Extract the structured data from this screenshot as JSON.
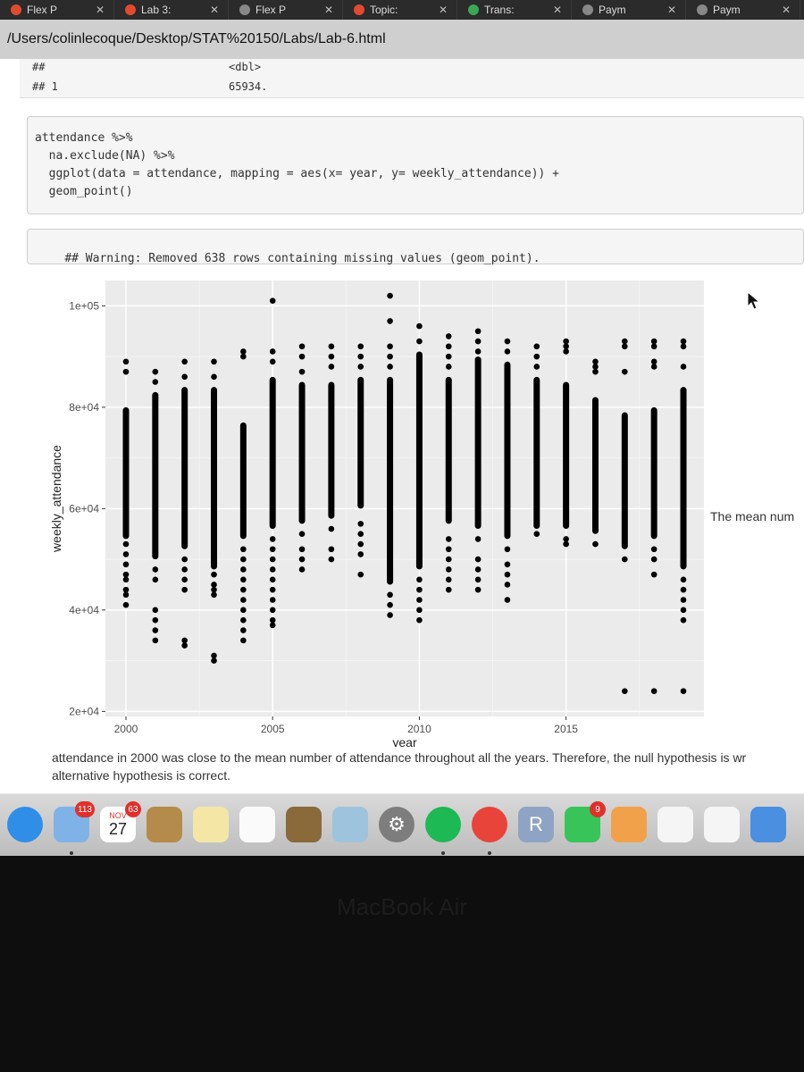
{
  "browser": {
    "tabs": [
      {
        "label": "Flex P",
        "icon_color": "#e24a2f"
      },
      {
        "label": "Lab 3:",
        "icon_color": "#e24a2f"
      },
      {
        "label": "Flex P",
        "icon_color": "#888888"
      },
      {
        "label": "Topic:",
        "icon_color": "#e24a2f"
      },
      {
        "label": "Trans:",
        "icon_color": "#3aa757"
      },
      {
        "label": "Paym",
        "icon_color": "#888888"
      },
      {
        "label": "Paym",
        "icon_color": "#888888"
      }
    ],
    "close_glyph": "✕",
    "url": "/Users/colinlecoque/Desktop/STAT%20150/Labs/Lab-6.html"
  },
  "output_prev": {
    "prefix1": "##",
    "type_label": "<dbl>",
    "prefix2": "## 1",
    "value": "65934."
  },
  "code": {
    "lines": [
      "attendance %>%",
      "  na.exclude(NA) %>%",
      "  ggplot(data = attendance, mapping = aes(x= year, y= weekly_attendance)) +",
      "  geom_point()"
    ]
  },
  "warning": {
    "text": "## Warning: Removed 638 rows containing missing values (geom_point)."
  },
  "chart_data": {
    "type": "scatter",
    "xlabel": "year",
    "ylabel": "weekly_attendance",
    "xlim": [
      1999.3,
      2019.7
    ],
    "ylim": [
      19000,
      105000
    ],
    "xticks": [
      2000,
      2005,
      2010,
      2015
    ],
    "yticks": [
      20000,
      40000,
      60000,
      80000,
      100000
    ],
    "ytick_labels": [
      "2e+04",
      "4e+04",
      "6e+04",
      "8e+04",
      "1e+05"
    ],
    "grid": true,
    "background": "#ebebeb",
    "point_color": "#000000",
    "years": [
      {
        "x": 2000,
        "bar": [
          54000,
          80000
        ],
        "points": [
          89000,
          87000,
          53000,
          51000,
          49000,
          47000,
          46000,
          44000,
          43000,
          41000
        ]
      },
      {
        "x": 2001,
        "bar": [
          50000,
          83000
        ],
        "points": [
          87000,
          85000,
          48000,
          46000,
          40000,
          38000,
          36000,
          34000
        ]
      },
      {
        "x": 2002,
        "bar": [
          52000,
          84000
        ],
        "points": [
          89000,
          86000,
          50000,
          48000,
          46000,
          44000,
          34000,
          33000
        ]
      },
      {
        "x": 2003,
        "bar": [
          48000,
          84000
        ],
        "points": [
          89000,
          86000,
          47000,
          45000,
          44000,
          43000,
          31000,
          30000
        ]
      },
      {
        "x": 2004,
        "bar": [
          54000,
          77000
        ],
        "points": [
          91000,
          90000,
          52000,
          50000,
          48000,
          46000,
          44000,
          42000,
          40000,
          38000,
          36000,
          34000
        ]
      },
      {
        "x": 2005,
        "bar": [
          56000,
          86000
        ],
        "points": [
          101000,
          91000,
          89000,
          54000,
          52000,
          50000,
          48000,
          46000,
          44000,
          42000,
          40000,
          38000,
          37000
        ]
      },
      {
        "x": 2006,
        "bar": [
          57000,
          85000
        ],
        "points": [
          92000,
          90000,
          87000,
          55000,
          52000,
          50000,
          48000
        ]
      },
      {
        "x": 2007,
        "bar": [
          58000,
          85000
        ],
        "points": [
          92000,
          90000,
          88000,
          56000,
          52000,
          50000
        ]
      },
      {
        "x": 2008,
        "bar": [
          60000,
          86000
        ],
        "points": [
          92000,
          90000,
          88000,
          57000,
          55000,
          53000,
          51000,
          47000
        ]
      },
      {
        "x": 2009,
        "bar": [
          45000,
          86000
        ],
        "points": [
          102000,
          97000,
          92000,
          90000,
          88000,
          43000,
          41000,
          39000
        ]
      },
      {
        "x": 2010,
        "bar": [
          48000,
          91000
        ],
        "points": [
          96000,
          93000,
          46000,
          44000,
          42000,
          40000,
          38000
        ]
      },
      {
        "x": 2011,
        "bar": [
          57000,
          86000
        ],
        "points": [
          94000,
          92000,
          90000,
          88000,
          54000,
          52000,
          50000,
          48000,
          46000,
          44000
        ]
      },
      {
        "x": 2012,
        "bar": [
          56000,
          90000
        ],
        "points": [
          95000,
          93000,
          91000,
          54000,
          50000,
          48000,
          46000,
          44000
        ]
      },
      {
        "x": 2013,
        "bar": [
          54000,
          89000
        ],
        "points": [
          93000,
          91000,
          52000,
          49000,
          47000,
          45000,
          42000
        ]
      },
      {
        "x": 2014,
        "bar": [
          56000,
          86000
        ],
        "points": [
          92000,
          90000,
          88000,
          55000
        ]
      },
      {
        "x": 2015,
        "bar": [
          56000,
          85000
        ],
        "points": [
          93000,
          92000,
          91000,
          54000,
          53000
        ]
      },
      {
        "x": 2016,
        "bar": [
          55000,
          82000
        ],
        "points": [
          89000,
          88000,
          87000,
          53000
        ]
      },
      {
        "x": 2017,
        "bar": [
          52000,
          79000
        ],
        "points": [
          93000,
          92000,
          87000,
          50000,
          24000
        ]
      },
      {
        "x": 2018,
        "bar": [
          54000,
          80000
        ],
        "points": [
          93000,
          92000,
          89000,
          88000,
          52000,
          50000,
          47000,
          24000
        ]
      },
      {
        "x": 2019,
        "bar": [
          48000,
          84000
        ],
        "points": [
          93000,
          92000,
          88000,
          46000,
          44000,
          42000,
          40000,
          38000,
          24000
        ]
      }
    ]
  },
  "right_text": "The mean num",
  "paragraph": {
    "line1": "attendance in 2000 was close to the mean number of attendance throughout all the years. Therefore, the null hypothesis is wr",
    "line2": "alternative hypothesis is correct."
  },
  "dock": {
    "calendar_month": "NOV",
    "calendar_day": "27",
    "apps": [
      {
        "name": "safari",
        "color": "#2f8ee8",
        "glyph": "",
        "badge": ""
      },
      {
        "name": "migration",
        "color": "#7fb3e8",
        "glyph": "",
        "badge": "113"
      },
      {
        "name": "calendar",
        "color": "#ffffff",
        "glyph": "",
        "badge": "63"
      },
      {
        "name": "notes-brown",
        "color": "#b58b4c",
        "glyph": "",
        "badge": ""
      },
      {
        "name": "notes",
        "color": "#f4e7a6",
        "glyph": "",
        "badge": ""
      },
      {
        "name": "reminders",
        "color": "#fafafa",
        "glyph": "",
        "badge": ""
      },
      {
        "name": "sticky",
        "color": "#8a6a3b",
        "glyph": "",
        "badge": ""
      },
      {
        "name": "preview",
        "color": "#9ec3dd",
        "glyph": "",
        "badge": ""
      },
      {
        "name": "system-preferences",
        "color": "#7d7d7d",
        "glyph": "⚙",
        "badge": ""
      },
      {
        "name": "spotify",
        "color": "#1db954",
        "glyph": "",
        "badge": ""
      },
      {
        "name": "chrome",
        "color": "#e8443a",
        "glyph": "",
        "badge": ""
      },
      {
        "name": "r",
        "color": "#8fa4c4",
        "glyph": "R",
        "badge": ""
      },
      {
        "name": "facetime",
        "color": "#39c45a",
        "glyph": "",
        "badge": "9"
      },
      {
        "name": "pages",
        "color": "#f2a14b",
        "glyph": "",
        "badge": ""
      },
      {
        "name": "photos",
        "color": "#f5f5f5",
        "glyph": "",
        "badge": ""
      },
      {
        "name": "numbers",
        "color": "#f5f5f5",
        "glyph": "",
        "badge": ""
      },
      {
        "name": "keynote",
        "color": "#4a8fe0",
        "glyph": "",
        "badge": ""
      }
    ]
  },
  "hardware_label": "MacBook Air"
}
